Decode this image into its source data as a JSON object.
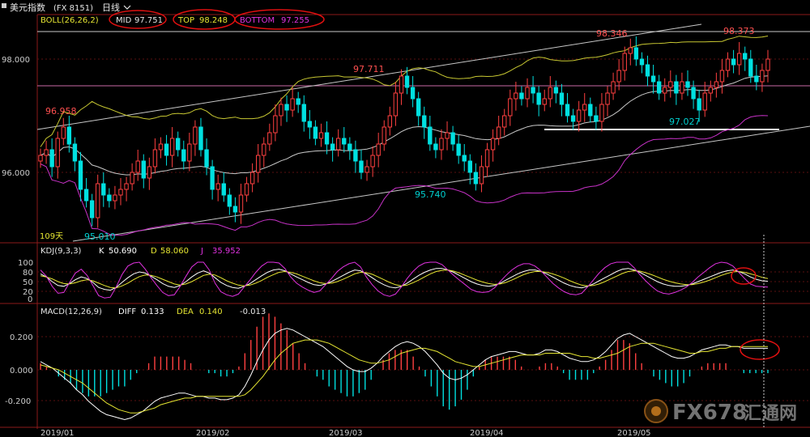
{
  "header": {
    "index_name": "美元指数",
    "symbol": "(FX 8151)",
    "period": "日线",
    "chevron_icon": "chevron-down-icon"
  },
  "boll": {
    "label": "BOLL(26,26,2)",
    "mid_label": "MID",
    "mid_value": "97.751",
    "top_label": "TOP",
    "top_value": "98.248",
    "bottom_label": "BOTTOM",
    "bottom_value": "97.255"
  },
  "kdj": {
    "label": "KDJ(9,3,3)",
    "k_label": "K",
    "k_value": "50.690",
    "d_label": "D",
    "d_value": "58.060",
    "j_label": "J",
    "j_value": "35.952",
    "ticks": [
      "100",
      "80",
      "50",
      "20",
      "0"
    ]
  },
  "macd": {
    "label": "MACD(12,26,9)",
    "diff_label": "DIFF",
    "diff_value": "0.133",
    "dea_label": "DEA",
    "dea_value": "0.140",
    "macd_value": "-0.013",
    "ticks": [
      "0.200",
      "0.000",
      "-0.200"
    ]
  },
  "price_axis": {
    "ticks": [
      "98.000",
      "96.000"
    ]
  },
  "annotations": {
    "high_1": "96.958",
    "low_1": "95.010",
    "high_2": "97.711",
    "low_2": "95.740",
    "high_3": "98.346",
    "low_3": "97.027",
    "high_4": "98.373",
    "days": "109天"
  },
  "date_axis": {
    "labels": [
      "2019/01",
      "2019/02",
      "2019/03",
      "2019/04",
      "2019/05"
    ]
  },
  "watermark": {
    "brand": "FX678",
    "cn": "汇通网"
  },
  "colors": {
    "background": "#000000",
    "up_candle": "#ff4040",
    "down_candle": "#00e0e0",
    "boll_mid": "#c8c8c8",
    "boll_upper": "#c8c832",
    "boll_lower": "#c832c8",
    "k_line": "#ffffff",
    "d_line": "#e6e632",
    "j_line": "#e032e0",
    "highlight_ellipse": "#e01010",
    "trend_line": "#c8c8c8",
    "support_line": "#ffffff",
    "pink_level": "#c86aa6"
  },
  "chart_data": [
    {
      "type": "candlestick",
      "title": "美元指数 (FX 8151) 日线",
      "indicator": "BOLL(26,26,2)",
      "ylim": [
        94.9,
        98.8
      ],
      "x": [
        "2019/01",
        "2019/02",
        "2019/03",
        "2019/04",
        "2019/05"
      ],
      "labeled_points": [
        {
          "label": "96.958",
          "value": 96.958
        },
        {
          "label": "95.010",
          "value": 95.01
        },
        {
          "label": "97.711",
          "value": 97.711
        },
        {
          "label": "95.740",
          "value": 95.74
        },
        {
          "label": "98.346",
          "value": 98.346
        },
        {
          "label": "97.027",
          "value": 97.027
        },
        {
          "label": "98.373",
          "value": 98.373
        }
      ],
      "close_series": [
        96.3,
        96.4,
        96.1,
        96.6,
        96.8,
        96.5,
        96.2,
        95.7,
        95.5,
        95.2,
        95.8,
        95.6,
        95.5,
        95.6,
        95.7,
        95.8,
        96.0,
        96.2,
        95.9,
        96.1,
        96.4,
        96.5,
        96.3,
        96.6,
        96.4,
        96.2,
        96.5,
        96.8,
        96.4,
        96.1,
        95.7,
        95.8,
        95.6,
        95.4,
        95.3,
        95.6,
        95.8,
        96.0,
        96.3,
        96.5,
        96.7,
        97.0,
        97.2,
        97.1,
        97.3,
        97.2,
        96.9,
        96.8,
        96.6,
        96.7,
        96.5,
        96.4,
        96.6,
        96.5,
        96.4,
        96.2,
        96.0,
        96.1,
        96.3,
        96.5,
        96.8,
        97.0,
        97.4,
        97.7,
        97.5,
        97.3,
        97.0,
        96.8,
        96.5,
        96.4,
        96.6,
        96.7,
        96.5,
        96.3,
        96.2,
        96.0,
        95.8,
        96.1,
        96.4,
        96.6,
        96.8,
        97.0,
        97.3,
        97.4,
        97.3,
        97.5,
        97.4,
        97.2,
        97.3,
        97.5,
        97.4,
        97.2,
        97.0,
        96.9,
        97.1,
        97.2,
        97.0,
        96.9,
        97.2,
        97.4,
        97.6,
        97.8,
        98.1,
        98.2,
        98.0,
        97.9,
        97.7,
        97.6,
        97.4,
        97.5,
        97.6,
        97.4,
        97.6,
        97.5,
        97.3,
        97.1,
        97.4,
        97.5,
        97.6,
        97.8,
        98.0,
        97.9,
        98.1,
        98.0,
        97.7,
        97.6,
        97.8,
        98.0
      ]
    },
    {
      "type": "line",
      "title": "KDJ(9,3,3)",
      "ylim": [
        0,
        110
      ],
      "series": [
        {
          "name": "K",
          "values": [
            70,
            62,
            50,
            40,
            38,
            45,
            55,
            62,
            58,
            48,
            35,
            30,
            28,
            35,
            48,
            60,
            70,
            75,
            72,
            64,
            55,
            45,
            38,
            35,
            40,
            50,
            62,
            72,
            78,
            72,
            60,
            48,
            40,
            35,
            33,
            38,
            45,
            55,
            65,
            74,
            80,
            82,
            78,
            70,
            62,
            55,
            48,
            42,
            40,
            44,
            50,
            58,
            66,
            74,
            80,
            78,
            70,
            60,
            50,
            42,
            36,
            34,
            38,
            46,
            56,
            66,
            74,
            80,
            84,
            84,
            80,
            74,
            66,
            58,
            50,
            44,
            40,
            38,
            40,
            46,
            54,
            62,
            70,
            76,
            80,
            80,
            76,
            70,
            62,
            54,
            46,
            40,
            36,
            34,
            38,
            44,
            52,
            60,
            68,
            76,
            82,
            84,
            80,
            74,
            66,
            58,
            50,
            44,
            40,
            38,
            38,
            40,
            44,
            50,
            56,
            62,
            68,
            74,
            78,
            80,
            76,
            70,
            62,
            56,
            52,
            51
          ]
        },
        {
          "name": "D",
          "values": [
            65,
            62,
            57,
            50,
            45,
            44,
            47,
            52,
            55,
            52,
            46,
            40,
            35,
            34,
            39,
            46,
            55,
            63,
            67,
            66,
            62,
            56,
            50,
            44,
            41,
            44,
            50,
            58,
            66,
            69,
            67,
            60,
            52,
            46,
            41,
            39,
            41,
            46,
            53,
            61,
            68,
            74,
            76,
            74,
            70,
            64,
            58,
            52,
            47,
            45,
            46,
            50,
            56,
            63,
            70,
            74,
            73,
            69,
            62,
            55,
            48,
            42,
            39,
            41,
            47,
            54,
            62,
            70,
            76,
            79,
            80,
            77,
            72,
            66,
            60,
            54,
            49,
            45,
            43,
            44,
            48,
            54,
            61,
            68,
            73,
            76,
            76,
            74,
            70,
            65,
            59,
            52,
            46,
            41,
            39,
            40,
            44,
            50,
            57,
            64,
            71,
            76,
            78,
            77,
            73,
            68,
            62,
            56,
            51,
            47,
            44,
            42,
            42,
            45,
            49,
            54,
            60,
            66,
            71,
            75,
            76,
            74,
            70,
            66,
            61,
            58
          ]
        },
        {
          "name": "J",
          "values": [
            80,
            64,
            38,
            20,
            22,
            48,
            72,
            82,
            66,
            40,
            14,
            8,
            10,
            36,
            68,
            90,
            98,
            100,
            82,
            60,
            40,
            22,
            14,
            16,
            38,
            64,
            88,
            100,
            100,
            80,
            46,
            24,
            16,
            12,
            18,
            36,
            54,
            74,
            90,
            100,
            100,
            98,
            84,
            62,
            46,
            36,
            28,
            22,
            26,
            42,
            58,
            76,
            88,
            96,
            100,
            88,
            62,
            42,
            26,
            16,
            12,
            18,
            36,
            58,
            76,
            90,
            98,
            100,
            100,
            94,
            80,
            66,
            54,
            42,
            30,
            24,
            22,
            24,
            34,
            50,
            66,
            80,
            90,
            96,
            96,
            90,
            78,
            62,
            46,
            34,
            24,
            18,
            16,
            20,
            36,
            54,
            72,
            86,
            96,
            100,
            100,
            100,
            86,
            68,
            52,
            38,
            26,
            20,
            18,
            22,
            28,
            36,
            48,
            62,
            74,
            86,
            96,
            100,
            98,
            90,
            74,
            58,
            44,
            38,
            37,
            36
          ]
        }
      ]
    },
    {
      "type": "bar",
      "title": "MACD(12,26,9)",
      "ylim": [
        -0.32,
        0.32
      ],
      "series": [
        {
          "name": "DIFF",
          "values": [
            0.05,
            0.03,
            0.01,
            -0.02,
            -0.05,
            -0.08,
            -0.12,
            -0.15,
            -0.19,
            -0.22,
            -0.25,
            -0.27,
            -0.28,
            -0.29,
            -0.3,
            -0.29,
            -0.27,
            -0.25,
            -0.22,
            -0.19,
            -0.17,
            -0.16,
            -0.15,
            -0.14,
            -0.14,
            -0.15,
            -0.16,
            -0.16,
            -0.17,
            -0.17,
            -0.18,
            -0.18,
            -0.17,
            -0.15,
            -0.1,
            -0.03,
            0.05,
            0.12,
            0.18,
            0.22,
            0.24,
            0.25,
            0.24,
            0.22,
            0.2,
            0.18,
            0.16,
            0.14,
            0.11,
            0.08,
            0.05,
            0.02,
            0.0,
            -0.01,
            -0.01,
            0.01,
            0.04,
            0.08,
            0.11,
            0.14,
            0.16,
            0.17,
            0.16,
            0.14,
            0.11,
            0.07,
            0.03,
            -0.02,
            -0.05,
            -0.06,
            -0.05,
            -0.03,
            0.0,
            0.03,
            0.06,
            0.08,
            0.09,
            0.1,
            0.11,
            0.11,
            0.1,
            0.09,
            0.09,
            0.1,
            0.12,
            0.12,
            0.11,
            0.09,
            0.07,
            0.06,
            0.05,
            0.05,
            0.06,
            0.08,
            0.11,
            0.15,
            0.19,
            0.21,
            0.22,
            0.2,
            0.18,
            0.16,
            0.14,
            0.12,
            0.1,
            0.08,
            0.07,
            0.07,
            0.08,
            0.1,
            0.12,
            0.13,
            0.14,
            0.15,
            0.15,
            0.14,
            0.14,
            0.13,
            0.13,
            0.13,
            0.13,
            0.13
          ]
        },
        {
          "name": "DEA",
          "values": [
            0.03,
            0.02,
            0.01,
            0.0,
            -0.02,
            -0.04,
            -0.06,
            -0.08,
            -0.11,
            -0.14,
            -0.17,
            -0.2,
            -0.22,
            -0.24,
            -0.25,
            -0.26,
            -0.26,
            -0.25,
            -0.24,
            -0.23,
            -0.21,
            -0.2,
            -0.19,
            -0.18,
            -0.17,
            -0.17,
            -0.16,
            -0.16,
            -0.16,
            -0.16,
            -0.16,
            -0.16,
            -0.16,
            -0.16,
            -0.15,
            -0.12,
            -0.08,
            -0.04,
            0.01,
            0.06,
            0.1,
            0.13,
            0.16,
            0.17,
            0.18,
            0.18,
            0.18,
            0.17,
            0.16,
            0.14,
            0.12,
            0.1,
            0.08,
            0.06,
            0.05,
            0.04,
            0.04,
            0.05,
            0.06,
            0.08,
            0.1,
            0.11,
            0.12,
            0.13,
            0.13,
            0.12,
            0.11,
            0.09,
            0.07,
            0.05,
            0.04,
            0.03,
            0.02,
            0.02,
            0.03,
            0.04,
            0.05,
            0.06,
            0.07,
            0.08,
            0.09,
            0.09,
            0.09,
            0.09,
            0.1,
            0.1,
            0.1,
            0.1,
            0.1,
            0.09,
            0.08,
            0.08,
            0.07,
            0.07,
            0.08,
            0.09,
            0.1,
            0.12,
            0.14,
            0.15,
            0.16,
            0.16,
            0.16,
            0.15,
            0.14,
            0.13,
            0.12,
            0.11,
            0.1,
            0.1,
            0.11,
            0.11,
            0.12,
            0.13,
            0.13,
            0.14,
            0.14,
            0.14,
            0.14,
            0.14,
            0.14,
            0.14
          ]
        }
      ]
    }
  ]
}
